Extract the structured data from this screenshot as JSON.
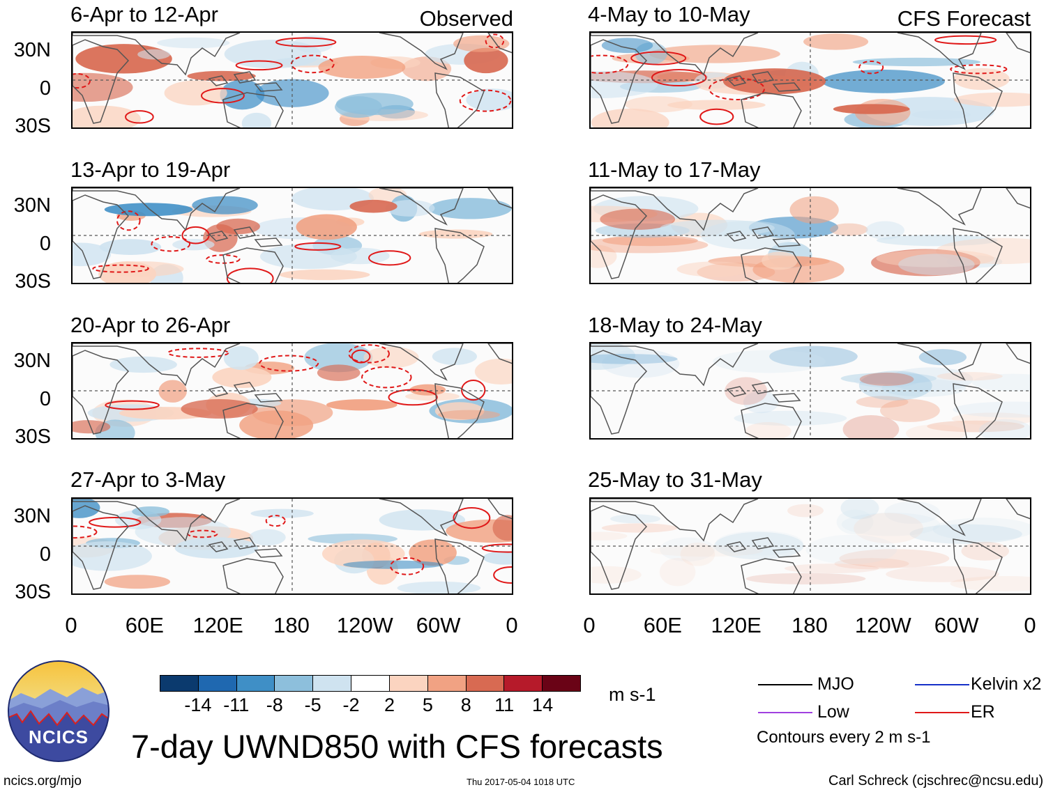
{
  "colors": {
    "mjo": "#000000",
    "low": "#a040e0",
    "kelvin": "#1530c8",
    "er": "#e01818",
    "scale": [
      "#0b3a6e",
      "#1f68b0",
      "#3f8fc6",
      "#8dbfdc",
      "#cfe3f0",
      "#ffffff",
      "#fbd4c0",
      "#f1a283",
      "#d86a52",
      "#b61a2a",
      "#6a0316"
    ]
  },
  "chart_data": [
    {
      "type": "heatmap",
      "title": "6-Apr to 12-Apr",
      "tag": "Observed",
      "column": "observed"
    },
    {
      "type": "heatmap",
      "title": "13-Apr to 19-Apr",
      "tag": "",
      "column": "observed"
    },
    {
      "type": "heatmap",
      "title": "20-Apr to 26-Apr",
      "tag": "",
      "column": "observed"
    },
    {
      "type": "heatmap",
      "title": "27-Apr to 3-May",
      "tag": "",
      "column": "observed"
    },
    {
      "type": "heatmap",
      "title": "4-May to 10-May",
      "tag": "CFS Forecast",
      "column": "forecast"
    },
    {
      "type": "heatmap",
      "title": "11-May to 17-May",
      "tag": "",
      "column": "forecast"
    },
    {
      "type": "heatmap",
      "title": "18-May to 24-May",
      "tag": "",
      "column": "forecast"
    },
    {
      "type": "heatmap",
      "title": "25-May to 31-May",
      "tag": "",
      "column": "forecast"
    }
  ],
  "axes": {
    "ylabels": [
      "30N",
      "0",
      "30S"
    ],
    "xlabels": [
      "0",
      "60E",
      "120E",
      "180",
      "120W",
      "60W",
      "0"
    ],
    "ylim": [
      -40,
      40
    ],
    "xlim": [
      0,
      360
    ]
  },
  "colorbar": {
    "ticks": [
      "-14",
      "-11",
      "-8",
      "-5",
      "-2",
      "2",
      "5",
      "8",
      "11",
      "14"
    ],
    "units": "m s-1"
  },
  "legend": {
    "mjo": "MJO",
    "kelvin": "Kelvin x2",
    "low": "Low",
    "er": "ER",
    "contour_note": "Contours every 2 m s-1"
  },
  "logo_text": "NCICS",
  "main_title": "7-day UWND850 with CFS forecasts",
  "footer": {
    "url": "ncics.org/mjo",
    "timestamp": "Thu 2017-05-04 1018 UTC",
    "credit": "Carl Schreck (cjschrec@ncsu.edu)"
  }
}
